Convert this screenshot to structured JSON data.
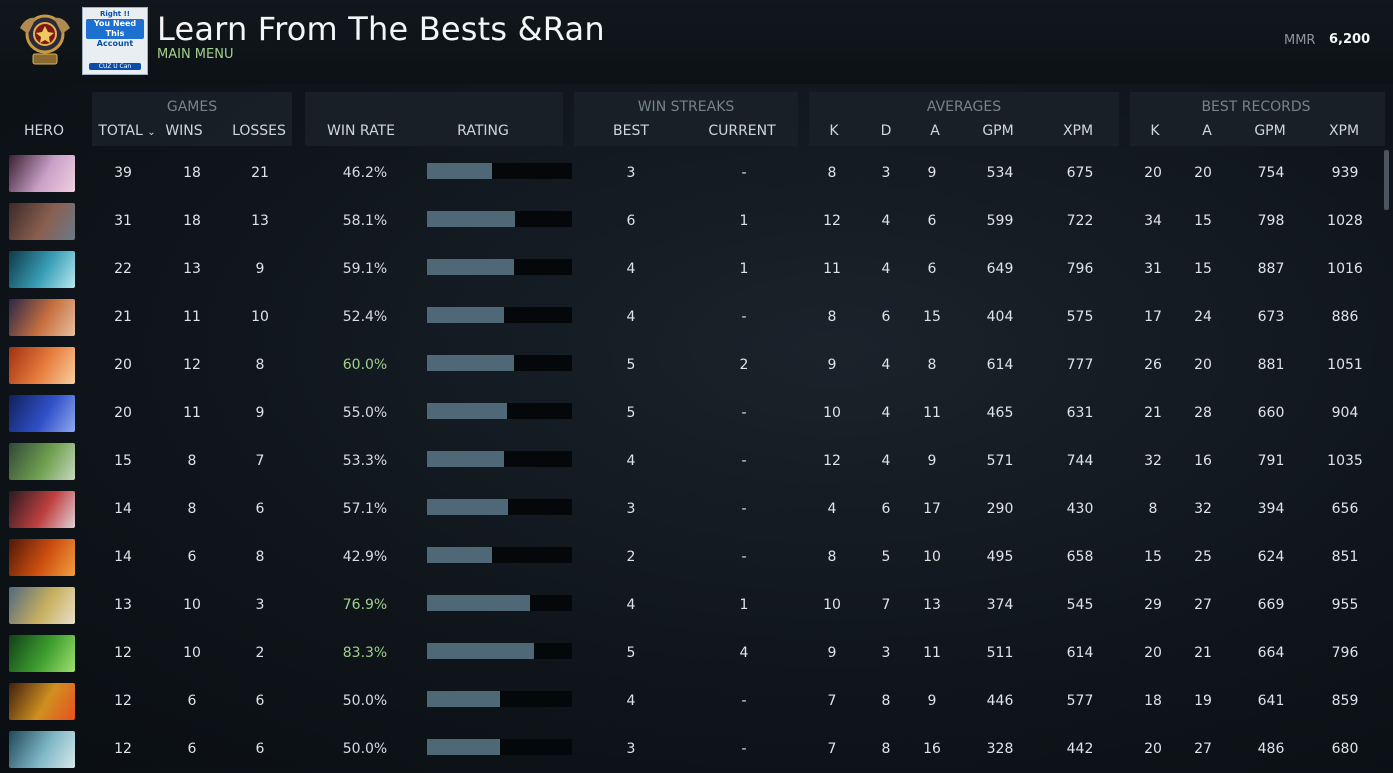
{
  "header": {
    "title": "Learn From The Bests &Rankl",
    "subtitle": "MAIN MENU",
    "mmr_label": "MMR",
    "mmr_value": "6,200",
    "promo": {
      "line1": "Right !!",
      "line2": "You Need This",
      "line3": "Account",
      "line4": "CUZ U Can"
    }
  },
  "groups": {
    "games": "GAMES",
    "win_streaks": "WIN STREAKS",
    "averages": "AVERAGES",
    "best_records": "BEST RECORDS"
  },
  "columns": {
    "hero": "HERO",
    "total": "TOTAL",
    "wins": "WINS",
    "losses": "LOSSES",
    "win_rate": "WIN RATE",
    "rating": "RATING",
    "best": "BEST",
    "current": "CURRENT",
    "k": "K",
    "d": "D",
    "a": "A",
    "gpm": "GPM",
    "xpm": "XPM",
    "best_k": "K",
    "best_a": "A",
    "best_gpm": "GPM",
    "best_xpm": "XPM"
  },
  "colors": {
    "good_win_rate": "#9fd08a",
    "rating_bar": "#4e6878",
    "subtitle": "#a3d08a"
  },
  "rows": [
    {
      "hero_icon": "hero-portrait-1",
      "hero_colors": [
        "#3a2030",
        "#c9a0c8",
        "#f0d0e0"
      ],
      "total": "39",
      "wins": "18",
      "losses": "21",
      "win_rate": "46.2%",
      "good": false,
      "rating": 0.45,
      "best": "3",
      "current": "-",
      "k": "8",
      "d": "3",
      "a": "9",
      "gpm": "534",
      "xpm": "675",
      "bk": "20",
      "ba": "20",
      "bgpm": "754",
      "bxpm": "939"
    },
    {
      "hero_icon": "hero-portrait-2",
      "hero_colors": [
        "#3b2a28",
        "#8a5f50",
        "#6a7a8a"
      ],
      "total": "31",
      "wins": "18",
      "losses": "13",
      "win_rate": "58.1%",
      "good": false,
      "rating": 0.61,
      "best": "6",
      "current": "1",
      "k": "12",
      "d": "4",
      "a": "6",
      "gpm": "599",
      "xpm": "722",
      "bk": "34",
      "ba": "15",
      "bgpm": "798",
      "bxpm": "1028"
    },
    {
      "hero_icon": "hero-portrait-3",
      "hero_colors": [
        "#0e3a48",
        "#3aa0b8",
        "#b8e8f0"
      ],
      "total": "22",
      "wins": "13",
      "losses": "9",
      "win_rate": "59.1%",
      "good": false,
      "rating": 0.6,
      "best": "4",
      "current": "1",
      "k": "11",
      "d": "4",
      "a": "6",
      "gpm": "649",
      "xpm": "796",
      "bk": "31",
      "ba": "15",
      "bgpm": "887",
      "bxpm": "1016"
    },
    {
      "hero_icon": "hero-portrait-4",
      "hero_colors": [
        "#2a2848",
        "#c87040",
        "#e8c0a0"
      ],
      "total": "21",
      "wins": "11",
      "losses": "10",
      "win_rate": "52.4%",
      "good": false,
      "rating": 0.53,
      "best": "4",
      "current": "-",
      "k": "8",
      "d": "6",
      "a": "15",
      "gpm": "404",
      "xpm": "575",
      "bk": "17",
      "ba": "24",
      "bgpm": "673",
      "bxpm": "886"
    },
    {
      "hero_icon": "hero-portrait-5",
      "hero_colors": [
        "#a03010",
        "#e88040",
        "#f8d0a0"
      ],
      "total": "20",
      "wins": "12",
      "losses": "8",
      "win_rate": "60.0%",
      "good": true,
      "rating": 0.6,
      "best": "5",
      "current": "2",
      "k": "9",
      "d": "4",
      "a": "8",
      "gpm": "614",
      "xpm": "777",
      "bk": "26",
      "ba": "20",
      "bgpm": "881",
      "bxpm": "1051"
    },
    {
      "hero_icon": "hero-portrait-6",
      "hero_colors": [
        "#10205a",
        "#3050c8",
        "#90a8f0"
      ],
      "total": "20",
      "wins": "11",
      "losses": "9",
      "win_rate": "55.0%",
      "good": false,
      "rating": 0.55,
      "best": "5",
      "current": "-",
      "k": "10",
      "d": "4",
      "a": "11",
      "gpm": "465",
      "xpm": "631",
      "bk": "21",
      "ba": "28",
      "bgpm": "660",
      "bxpm": "904"
    },
    {
      "hero_icon": "hero-portrait-7",
      "hero_colors": [
        "#304838",
        "#70a050",
        "#c8d8c0"
      ],
      "total": "15",
      "wins": "8",
      "losses": "7",
      "win_rate": "53.3%",
      "good": false,
      "rating": 0.53,
      "best": "4",
      "current": "-",
      "k": "12",
      "d": "4",
      "a": "9",
      "gpm": "571",
      "xpm": "744",
      "bk": "32",
      "ba": "16",
      "bgpm": "791",
      "bxpm": "1035"
    },
    {
      "hero_icon": "hero-portrait-8",
      "hero_colors": [
        "#2a1a20",
        "#c04040",
        "#e0d0d8"
      ],
      "total": "14",
      "wins": "8",
      "losses": "6",
      "win_rate": "57.1%",
      "good": false,
      "rating": 0.56,
      "best": "3",
      "current": "-",
      "k": "4",
      "d": "6",
      "a": "17",
      "gpm": "290",
      "xpm": "430",
      "bk": "8",
      "ba": "32",
      "bgpm": "394",
      "bxpm": "656"
    },
    {
      "hero_icon": "hero-portrait-9",
      "hero_colors": [
        "#501808",
        "#d05010",
        "#f0a040"
      ],
      "total": "14",
      "wins": "6",
      "losses": "8",
      "win_rate": "42.9%",
      "good": false,
      "rating": 0.45,
      "best": "2",
      "current": "-",
      "k": "8",
      "d": "5",
      "a": "10",
      "gpm": "495",
      "xpm": "658",
      "bk": "15",
      "ba": "25",
      "bgpm": "624",
      "bxpm": "851"
    },
    {
      "hero_icon": "hero-portrait-10",
      "hero_colors": [
        "#506880",
        "#c8b060",
        "#e8e0c8"
      ],
      "total": "13",
      "wins": "10",
      "losses": "3",
      "win_rate": "76.9%",
      "good": true,
      "rating": 0.71,
      "best": "4",
      "current": "1",
      "k": "10",
      "d": "7",
      "a": "13",
      "gpm": "374",
      "xpm": "545",
      "bk": "29",
      "ba": "27",
      "bgpm": "669",
      "bxpm": "955"
    },
    {
      "hero_icon": "hero-portrait-11",
      "hero_colors": [
        "#104018",
        "#40a030",
        "#a0e070"
      ],
      "total": "12",
      "wins": "10",
      "losses": "2",
      "win_rate": "83.3%",
      "good": true,
      "rating": 0.74,
      "best": "5",
      "current": "4",
      "k": "9",
      "d": "3",
      "a": "11",
      "gpm": "511",
      "xpm": "614",
      "bk": "20",
      "ba": "21",
      "bgpm": "664",
      "bxpm": "796"
    },
    {
      "hero_icon": "hero-portrait-12",
      "hero_colors": [
        "#402010",
        "#d09020",
        "#e85020"
      ],
      "total": "12",
      "wins": "6",
      "losses": "6",
      "win_rate": "50.0%",
      "good": false,
      "rating": 0.5,
      "best": "4",
      "current": "-",
      "k": "7",
      "d": "8",
      "a": "9",
      "gpm": "446",
      "xpm": "577",
      "bk": "18",
      "ba": "19",
      "bgpm": "641",
      "bxpm": "859"
    },
    {
      "hero_icon": "hero-portrait-13",
      "hero_colors": [
        "#204858",
        "#80b8c8",
        "#d8e8e8"
      ],
      "total": "12",
      "wins": "6",
      "losses": "6",
      "win_rate": "50.0%",
      "good": false,
      "rating": 0.5,
      "best": "3",
      "current": "-",
      "k": "7",
      "d": "8",
      "a": "16",
      "gpm": "328",
      "xpm": "442",
      "bk": "20",
      "ba": "27",
      "bgpm": "486",
      "bxpm": "680"
    }
  ]
}
